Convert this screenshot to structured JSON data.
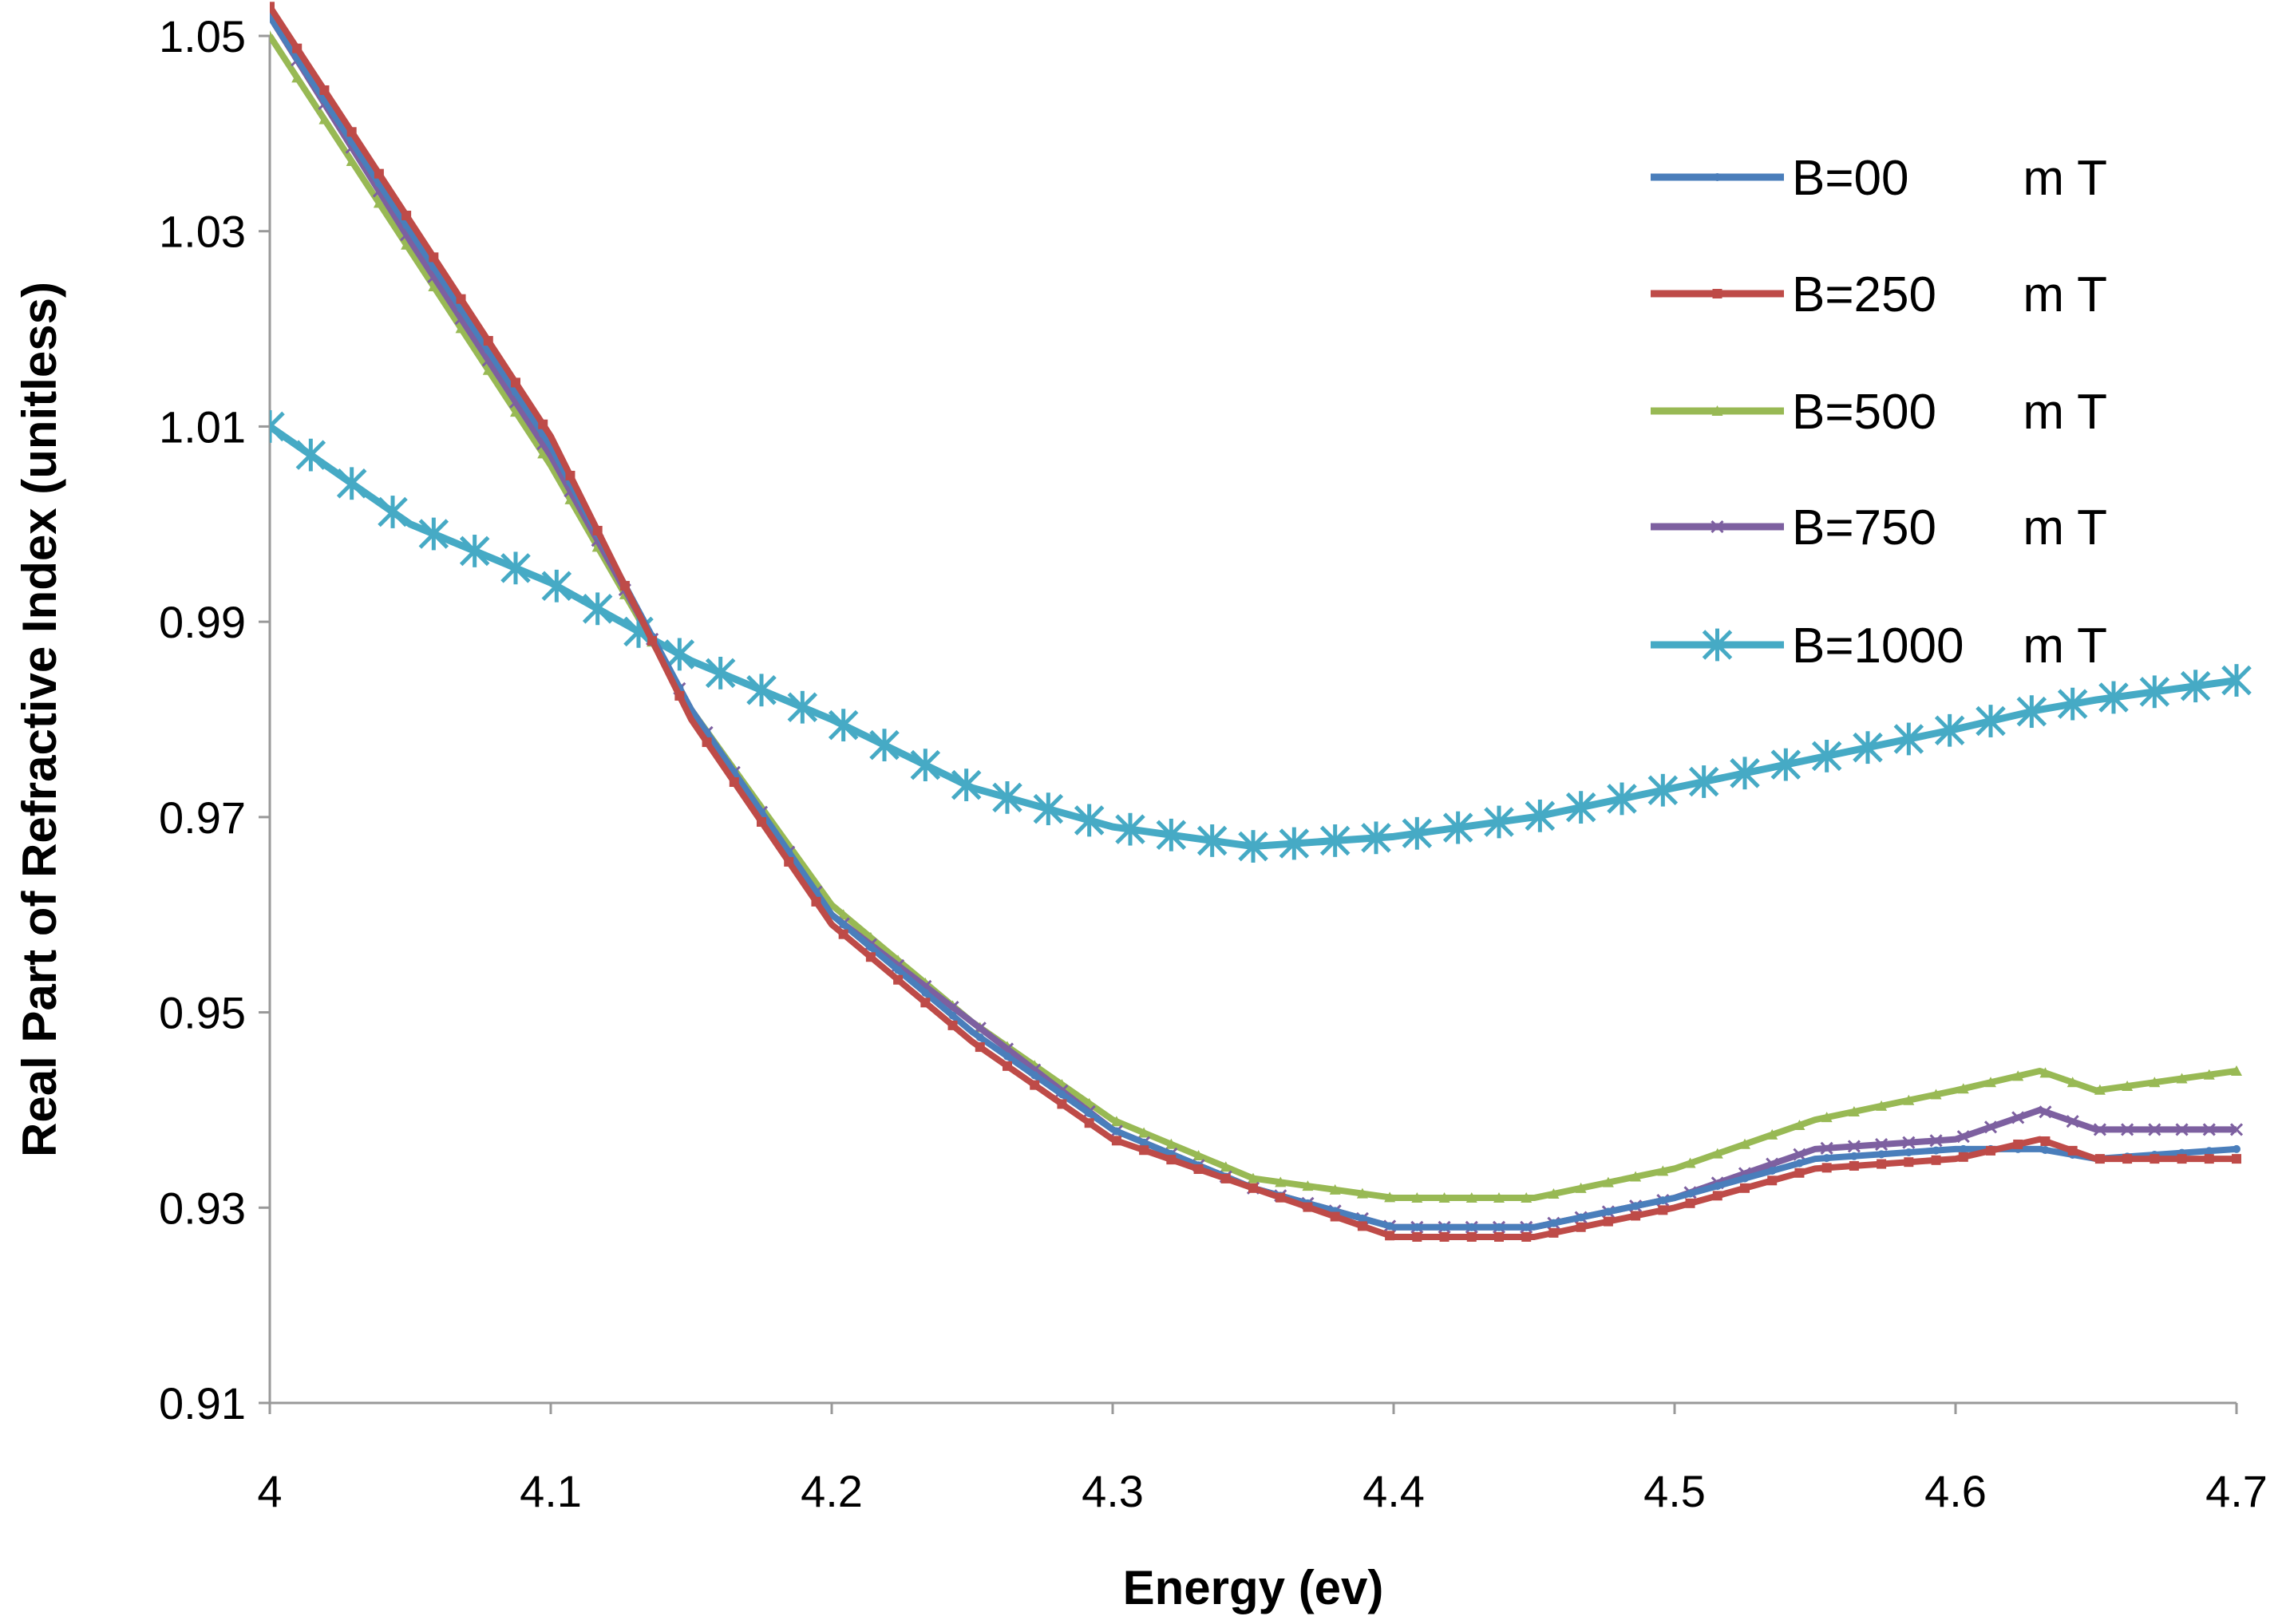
{
  "chart_data": {
    "type": "line",
    "title": "",
    "xlabel": "Energy (ev)",
    "ylabel": "Real Part of Refractive Index (unitless)",
    "xlim": [
      4.0,
      4.7
    ],
    "ylim": [
      0.91,
      1.05
    ],
    "xticks": [
      "4",
      "4.1",
      "4.2",
      "4.3",
      "4.4",
      "4.5",
      "4.6",
      "4.7"
    ],
    "yticks": [
      "0.91",
      "0.93",
      "0.95",
      "0.97",
      "0.99",
      "1.01",
      "1.03",
      "1.05"
    ],
    "grid": false,
    "legend_position": "top-right",
    "x": [
      4.0,
      4.05,
      4.1,
      4.15,
      4.2,
      4.25,
      4.3,
      4.35,
      4.4,
      4.45,
      4.5,
      4.55,
      4.6,
      4.63,
      4.65,
      4.7
    ],
    "series": [
      {
        "name": "B=00",
        "unit": "m T",
        "color": "#4a7ebb",
        "marker": "dot",
        "values": [
          1.052,
          1.03,
          1.008,
          0.981,
          0.96,
          0.948,
          0.938,
          0.932,
          0.928,
          0.928,
          0.931,
          0.935,
          0.936,
          0.936,
          0.935,
          0.936
        ]
      },
      {
        "name": "B=250",
        "unit": "m T",
        "color": "#be4b48",
        "marker": "square",
        "values": [
          1.053,
          1.031,
          1.009,
          0.98,
          0.959,
          0.947,
          0.937,
          0.932,
          0.927,
          0.927,
          0.93,
          0.934,
          0.935,
          0.937,
          0.935,
          0.935
        ]
      },
      {
        "name": "B=500",
        "unit": "m T",
        "color": "#98b954",
        "marker": "triangle",
        "values": [
          1.05,
          1.028,
          1.006,
          0.981,
          0.961,
          0.949,
          0.939,
          0.933,
          0.931,
          0.931,
          0.934,
          0.939,
          0.942,
          0.944,
          0.942,
          0.944
        ]
      },
      {
        "name": "B=750",
        "unit": "m T",
        "color": "#7d60a0",
        "marker": "cross",
        "values": [
          1.052,
          1.029,
          1.007,
          0.981,
          0.96,
          0.949,
          0.938,
          0.932,
          0.928,
          0.928,
          0.931,
          0.936,
          0.937,
          0.94,
          0.938,
          0.938
        ]
      },
      {
        "name": "B=1000",
        "unit": "m T",
        "color": "#46aac5",
        "marker": "star",
        "values": [
          1.01,
          1.0,
          0.994,
          0.986,
          0.98,
          0.973,
          0.969,
          0.967,
          0.968,
          0.97,
          0.973,
          0.976,
          0.979,
          0.981,
          0.982,
          0.984
        ]
      }
    ]
  }
}
